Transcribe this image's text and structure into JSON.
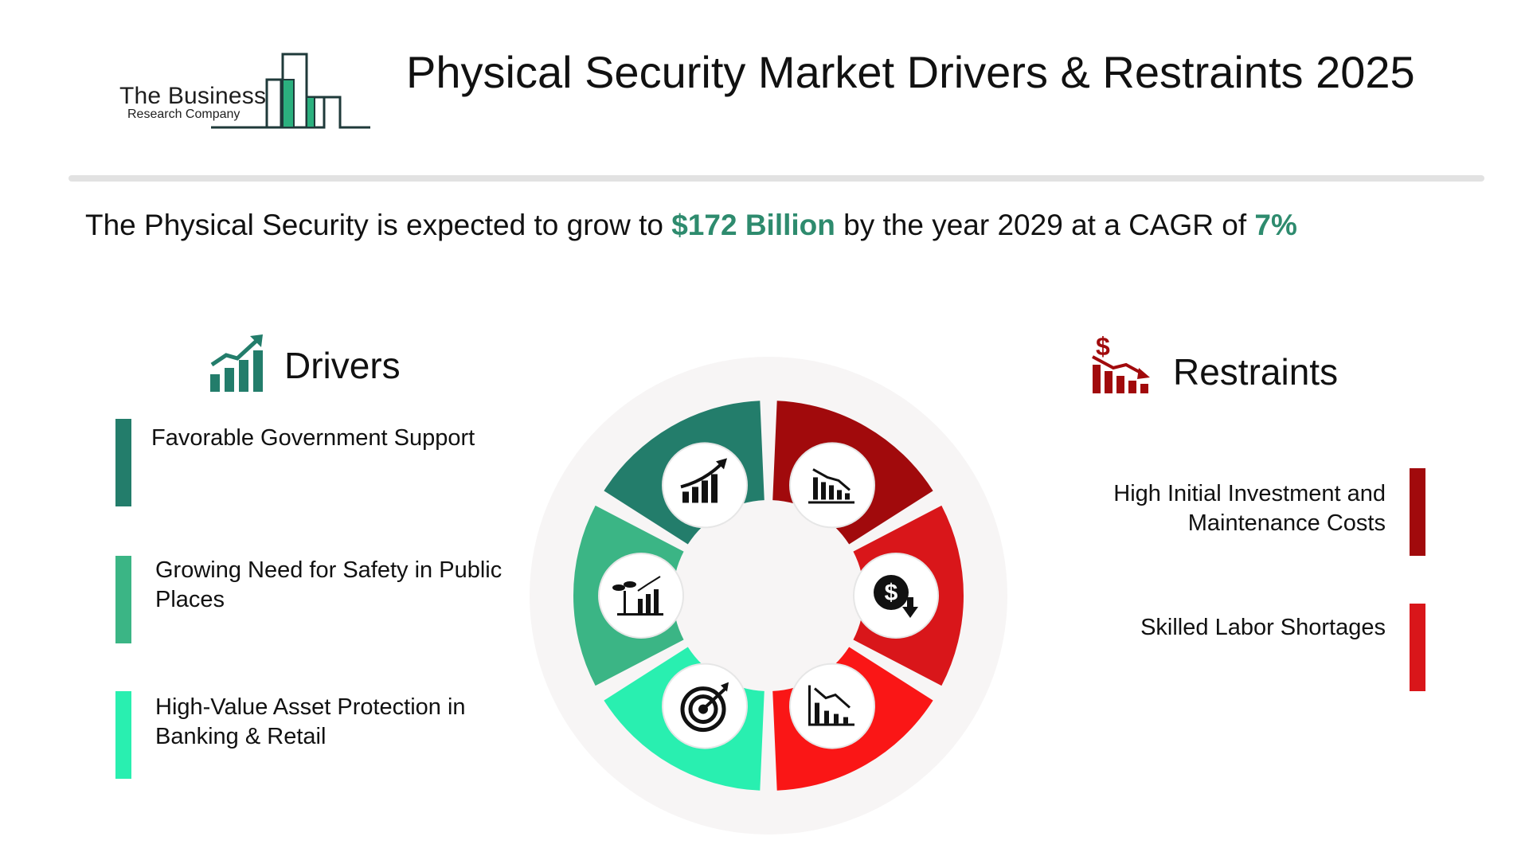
{
  "header": {
    "logo": {
      "line1": "The Business",
      "line2": "Research Company"
    },
    "title": "Physical Security Market Drivers & Restraints 2025"
  },
  "summary": {
    "prefix": "The Physical Security is expected to grow to ",
    "value": "$172 Billion",
    "middle": " by the year 2029 at a CAGR of ",
    "cagr": "7%"
  },
  "drivers": {
    "title": "Drivers",
    "icon": "growth-chart-icon",
    "items": [
      {
        "label": "Favorable Government Support",
        "color": "#237d6b"
      },
      {
        "label": "Growing Need for Safety in Public Places",
        "color": "#3bb585"
      },
      {
        "label": "High-Value Asset Protection in Banking & Retail",
        "color": "#29efb0"
      }
    ]
  },
  "restraints": {
    "title": "Restraints",
    "icon": "dollar-decline-chart-icon",
    "items": [
      {
        "label": "High Initial Investment and Maintenance Costs",
        "color": "#a10a0c"
      },
      {
        "label": "Skilled Labor Shortages",
        "color": "#d9161a"
      }
    ]
  },
  "wheel": {
    "segment_colors": [
      "#a10a0c",
      "#d9161a",
      "#fa1616",
      "#29efb0",
      "#3bb585",
      "#237d6b"
    ],
    "icons": [
      "bar-chart-decline-icon",
      "dollar-down-icon",
      "chart-decline-icon",
      "target-icon",
      "plant-growth-chart-icon",
      "bar-chart-growth-icon"
    ]
  },
  "colors": {
    "accent_green": "#2e8b6e",
    "divider": "#e2e2e2",
    "wheel_background": "#f7f5f5"
  }
}
